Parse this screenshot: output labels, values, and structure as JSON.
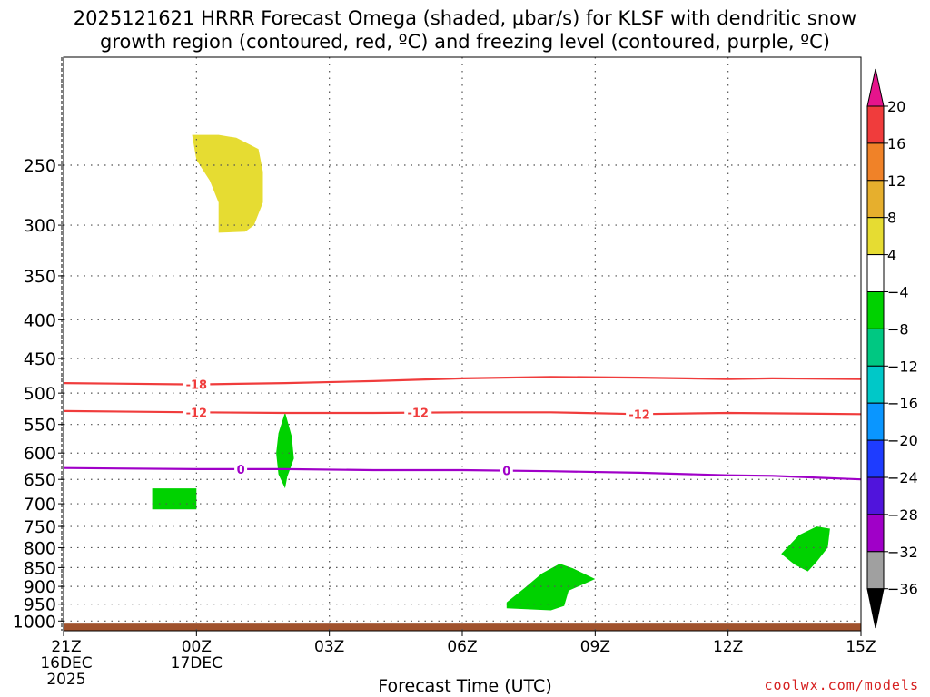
{
  "title_line1": "2025121621 HRRR Forecast Omega (shaded, μbar/s) for KLSF with dendritic snow",
  "title_line2": "growth region (contoured, red, ºC) and freezing level (contoured, purple, ºC)",
  "credit": "coolwx.com/models",
  "chart_data": {
    "type": "time-height contour",
    "xlabel": "Forecast Time (UTC)",
    "ylabel": "",
    "x_range_hours": [
      0,
      18
    ],
    "y_range_hPa": [
      180,
      1030
    ],
    "y_scale": "log",
    "grid": true,
    "x_ticks": [
      {
        "hour": 0,
        "lines": [
          "21Z",
          "16DEC",
          "2025"
        ]
      },
      {
        "hour": 3,
        "lines": [
          "00Z",
          "17DEC"
        ]
      },
      {
        "hour": 6,
        "lines": [
          "03Z"
        ]
      },
      {
        "hour": 9,
        "lines": [
          "06Z"
        ]
      },
      {
        "hour": 12,
        "lines": [
          "09Z"
        ]
      },
      {
        "hour": 15,
        "lines": [
          "12Z"
        ]
      },
      {
        "hour": 18,
        "lines": [
          "15Z"
        ]
      }
    ],
    "y_ticks": [
      250,
      300,
      350,
      400,
      450,
      500,
      550,
      600,
      650,
      700,
      750,
      800,
      850,
      900,
      950,
      1000
    ],
    "contours": [
      {
        "label": "-18",
        "color": "#f03c3c",
        "label_hours": [
          3.0
        ],
        "points": [
          [
            0,
            485
          ],
          [
            3,
            487
          ],
          [
            5,
            485
          ],
          [
            7,
            482
          ],
          [
            9,
            478
          ],
          [
            11,
            476
          ],
          [
            13,
            477
          ],
          [
            15,
            479
          ],
          [
            16,
            478
          ],
          [
            18,
            479
          ]
        ]
      },
      {
        "label": "-12",
        "color": "#f03c3c",
        "label_hours": [
          3.0,
          8.0,
          13.0
        ],
        "points": [
          [
            0,
            528
          ],
          [
            3,
            530
          ],
          [
            5,
            531
          ],
          [
            7,
            531
          ],
          [
            9,
            530
          ],
          [
            11,
            530
          ],
          [
            13,
            533
          ],
          [
            15,
            531
          ],
          [
            18,
            533
          ]
        ]
      },
      {
        "label": "0",
        "color": "#a000c8",
        "label_hours": [
          4.0,
          10.0
        ],
        "points": [
          [
            0,
            628
          ],
          [
            3,
            630
          ],
          [
            5,
            630
          ],
          [
            7,
            632
          ],
          [
            9,
            632
          ],
          [
            11,
            634
          ],
          [
            13,
            637
          ],
          [
            15,
            642
          ],
          [
            16,
            643
          ],
          [
            18,
            650
          ]
        ]
      }
    ],
    "shaded_regions": [
      {
        "category": "4 to 8",
        "color": "#e6dc32",
        "points": [
          [
            2.9,
            228
          ],
          [
            3.5,
            228
          ],
          [
            3.9,
            230
          ],
          [
            4.4,
            238
          ],
          [
            4.5,
            255
          ],
          [
            4.5,
            280
          ],
          [
            4.3,
            300
          ],
          [
            4.1,
            306
          ],
          [
            3.5,
            307
          ],
          [
            3.5,
            280
          ],
          [
            3.3,
            262
          ],
          [
            3.0,
            246
          ]
        ]
      },
      {
        "category": "-8 to -4",
        "color": "#00d200",
        "points": [
          [
            2.0,
            668
          ],
          [
            3.0,
            668
          ],
          [
            3.0,
            712
          ],
          [
            2.0,
            712
          ]
        ]
      },
      {
        "category": "-8 to -4",
        "color": "#00d200",
        "points": [
          [
            5.0,
            530
          ],
          [
            5.15,
            570
          ],
          [
            5.2,
            610
          ],
          [
            5.05,
            645
          ],
          [
            5.0,
            668
          ],
          [
            4.85,
            640
          ],
          [
            4.8,
            600
          ],
          [
            4.85,
            565
          ]
        ]
      },
      {
        "category": "-8 to -4",
        "color": "#00d200",
        "points": [
          [
            10.0,
            945
          ],
          [
            10.4,
            905
          ],
          [
            10.8,
            865
          ],
          [
            11.2,
            840
          ],
          [
            11.5,
            852
          ],
          [
            12.0,
            880
          ],
          [
            11.4,
            912
          ],
          [
            11.3,
            955
          ],
          [
            11.0,
            968
          ],
          [
            10.5,
            965
          ],
          [
            10.0,
            962
          ]
        ]
      },
      {
        "category": "-8 to -4",
        "color": "#00d200",
        "points": [
          [
            16.2,
            815
          ],
          [
            16.6,
            770
          ],
          [
            17.0,
            750
          ],
          [
            17.3,
            755
          ],
          [
            17.25,
            800
          ],
          [
            17.0,
            835
          ],
          [
            16.8,
            860
          ],
          [
            16.5,
            842
          ]
        ]
      }
    ],
    "ground": {
      "color": "#a0522d",
      "from_hPa": 1008,
      "to_hPa": 1030
    }
  },
  "colorbar": {
    "levels": [
      "20",
      "16",
      "12",
      "8",
      "4",
      "-4",
      "-8",
      "-12",
      "-16",
      "-20",
      "-24",
      "-28",
      "-32",
      "-36"
    ],
    "top_triangle_color": "#e6148c",
    "bottom_triangle_color": "#000000",
    "bin_colors": [
      "#f03c3c",
      "#f08228",
      "#e6af2d",
      "#e6dc32",
      "#ffffff",
      "#00d200",
      "#00c882",
      "#00c8c8",
      "#0a96ff",
      "#1e3cff",
      "#5014dc",
      "#a000c8",
      "#a0a0a0"
    ]
  }
}
